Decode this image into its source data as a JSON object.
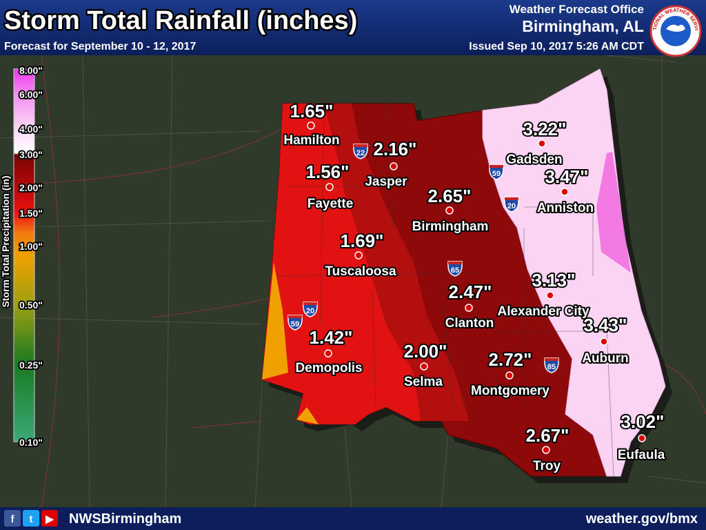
{
  "header": {
    "title": "Storm Total Rainfall (inches)",
    "subtitle": "Forecast for September 10 - 12, 2017",
    "office": "Weather Forecast Office",
    "location": "Birmingham, AL",
    "issued": "Issued Sep 10, 2017 5:26 AM CDT",
    "logo_text": "NATIONAL WEATHER SERVICE"
  },
  "legend": {
    "title": "Storm Total Precipitation (in)",
    "labels": [
      "8.00\"",
      "6.00\"",
      "4.00\"",
      "3.00\"",
      "2.00\"",
      "1.50\"",
      "1.00\"",
      "0.50\"",
      "0.25\"",
      "0.10\""
    ]
  },
  "cities": [
    {
      "name": "Hamilton",
      "value": "1.65\""
    },
    {
      "name": "Jasper",
      "value": "2.16\""
    },
    {
      "name": "Fayette",
      "value": "1.56\""
    },
    {
      "name": "Birmingham",
      "value": "2.65\""
    },
    {
      "name": "Tuscaloosa",
      "value": "1.69\""
    },
    {
      "name": "Demopolis",
      "value": "1.42\""
    },
    {
      "name": "Selma",
      "value": "2.00\""
    },
    {
      "name": "Clanton",
      "value": "2.47\""
    },
    {
      "name": "Montgomery",
      "value": "2.72\""
    },
    {
      "name": "Troy",
      "value": "2.67\""
    },
    {
      "name": "Gadsden",
      "value": "3.22\""
    },
    {
      "name": "Anniston",
      "value": "3.47\""
    },
    {
      "name": "Alexander City",
      "value": "3.13\""
    },
    {
      "name": "Auburn",
      "value": "3.43\""
    },
    {
      "name": "Eufaula",
      "value": "3.02\""
    }
  ],
  "interstates": [
    "22",
    "59",
    "20",
    "65",
    "20",
    "59",
    "85"
  ],
  "footer": {
    "social_icons": [
      "f",
      "t",
      "▶"
    ],
    "handle": "NWSBirmingham",
    "website": "weather.gov/bmx"
  }
}
